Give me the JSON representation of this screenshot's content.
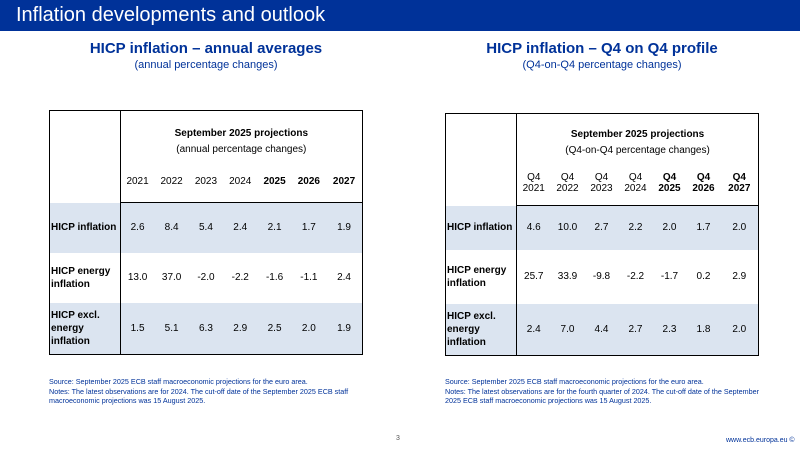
{
  "header": {
    "title": "Inflation developments and outlook"
  },
  "left": {
    "title": "HICP inflation – annual averages",
    "subtitle": "(annual percentage changes)",
    "table": {
      "projections_label": "September 2025 projections",
      "units_label": "(annual percentage changes)",
      "years": [
        {
          "label": "2021",
          "bold": false
        },
        {
          "label": "2022",
          "bold": false
        },
        {
          "label": "2023",
          "bold": false
        },
        {
          "label": "2024",
          "bold": false
        },
        {
          "label": "2025",
          "bold": true
        },
        {
          "label": "2026",
          "bold": true
        },
        {
          "label": "2027",
          "bold": true
        }
      ],
      "rows": [
        {
          "label": "HICP inflation",
          "values": [
            "2.6",
            "8.4",
            "5.4",
            "2.4",
            "2.1",
            "1.7",
            "1.9"
          ]
        },
        {
          "label": "HICP energy inflation",
          "values": [
            "13.0",
            "37.0",
            "-2.0",
            "-2.2",
            "-1.6",
            "-1.1",
            "2.4"
          ]
        },
        {
          "label": "HICP excl. energy inflation",
          "values": [
            "1.5",
            "5.1",
            "6.3",
            "2.9",
            "2.5",
            "2.0",
            "1.9"
          ]
        }
      ]
    },
    "source": "Source: September 2025 ECB staff macroeconomic projections for the euro area.",
    "notes": "Notes: The latest observations are for 2024. The cut-off date of the September 2025 ECB staff macroeconomic projections was 15 August 2025."
  },
  "right": {
    "title": "HICP inflation – Q4 on Q4 profile",
    "subtitle": "(Q4-on-Q4 percentage changes)",
    "table": {
      "projections_label": "September 2025 projections",
      "units_label": "(Q4-on-Q4 percentage changes)",
      "periods": [
        {
          "q": "Q4",
          "year": "2021",
          "bold": false
        },
        {
          "q": "Q4",
          "year": "2022",
          "bold": false
        },
        {
          "q": "Q4",
          "year": "2023",
          "bold": false
        },
        {
          "q": "Q4",
          "year": "2024",
          "bold": false
        },
        {
          "q": "Q4",
          "year": "2025",
          "bold": true
        },
        {
          "q": "Q4",
          "year": "2026",
          "bold": true
        },
        {
          "q": "Q4",
          "year": "2027",
          "bold": true
        }
      ],
      "rows": [
        {
          "label": "HICP inflation",
          "values": [
            "4.6",
            "10.0",
            "2.7",
            "2.2",
            "2.0",
            "1.7",
            "2.0"
          ]
        },
        {
          "label": "HICP energy inflation",
          "values": [
            "25.7",
            "33.9",
            "-9.8",
            "-2.2",
            "-1.7",
            "0.2",
            "2.9"
          ]
        },
        {
          "label": "HICP excl. energy inflation",
          "values": [
            "2.4",
            "7.0",
            "4.4",
            "2.7",
            "2.3",
            "1.8",
            "2.0"
          ]
        }
      ]
    },
    "source": "Source: September 2025 ECB staff macroeconomic projections for the euro area.",
    "notes": "Notes: The latest observations are for the fourth quarter of 2024. The cut-off date of the September 2025 ECB staff macroeconomic projections was 15 August 2025."
  },
  "footer": {
    "page_number": "3",
    "website": "www.ecb.europa.eu ©"
  }
}
